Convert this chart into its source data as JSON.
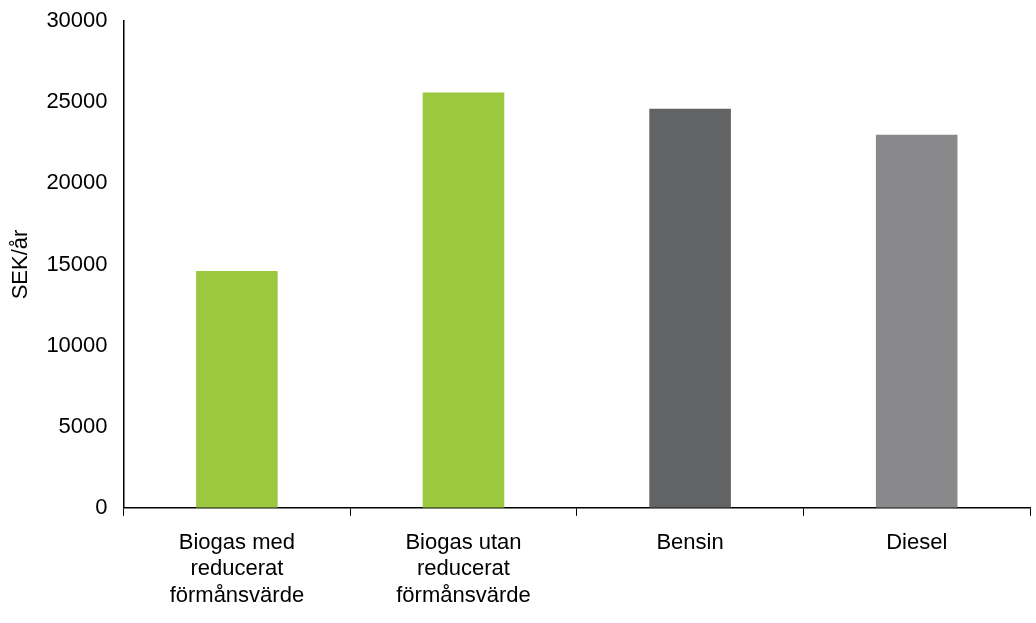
{
  "chart_data": {
    "type": "bar",
    "ylabel": "SEK/år",
    "categories": [
      "Biogas med reducerat förmånsvärde",
      "Biogas utan reducerat förmånsvärde",
      "Bensin",
      "Diesel"
    ],
    "values": [
      14600,
      25600,
      24600,
      23000
    ],
    "colors": [
      "#9bc83f",
      "#9bc83f",
      "#626365",
      "#89898b"
    ],
    "ylim": [
      0,
      30000
    ],
    "yticks": [
      0,
      5000,
      10000,
      15000,
      20000,
      25000,
      30000
    ],
    "grid": false,
    "legend": false
  }
}
